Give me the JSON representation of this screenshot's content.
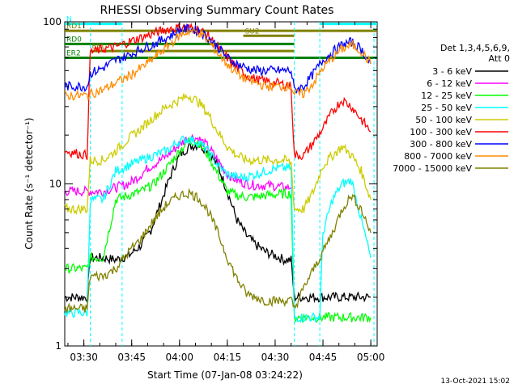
{
  "chart_data": {
    "type": "line",
    "title": "RHESSI Observing Summary Count Rates",
    "xlabel": "Start Time (07-Jan-08 03:24:22)",
    "ylabel": "Count Rate (s⁻¹ detector⁻¹)",
    "yscale": "log",
    "ylim": [
      1,
      100
    ],
    "xlim_min": [
      0,
      98
    ],
    "y_ticks": [
      {
        "v": 1,
        "label": "1"
      },
      {
        "v": 10,
        "label": "10"
      },
      {
        "v": 100,
        "label": "100"
      }
    ],
    "x_ticks": [
      {
        "t": 6,
        "label": "03:30"
      },
      {
        "t": 21,
        "label": "03:45"
      },
      {
        "t": 36,
        "label": "04:00"
      },
      {
        "t": 51,
        "label": "04:15"
      },
      {
        "t": 66,
        "label": "04:30"
      },
      {
        "t": 81,
        "label": "04:45"
      },
      {
        "t": 96,
        "label": "05:00"
      }
    ],
    "legend": {
      "header": [
        "Det 1,3,4,5,6,9,",
        "Att 0"
      ],
      "placement": "right"
    },
    "series": [
      {
        "name": "3 - 6 keV",
        "color": "#000000",
        "points": [
          [
            0,
            2.0
          ],
          [
            7,
            2.0
          ],
          [
            8,
            3.5
          ],
          [
            12,
            3.5
          ],
          [
            16,
            3.4
          ],
          [
            20,
            3.6
          ],
          [
            24,
            4.2
          ],
          [
            27,
            5.2
          ],
          [
            30,
            7.5
          ],
          [
            33,
            11
          ],
          [
            36,
            15
          ],
          [
            39,
            17
          ],
          [
            42,
            17.5
          ],
          [
            45,
            16
          ],
          [
            48,
            13
          ],
          [
            51,
            9
          ],
          [
            54,
            6
          ],
          [
            57,
            4.8
          ],
          [
            60,
            4.2
          ],
          [
            63,
            3.8
          ],
          [
            66,
            3.6
          ],
          [
            69,
            3.4
          ],
          [
            71,
            3.4
          ],
          [
            72,
            2.0
          ],
          [
            75,
            2.0
          ],
          [
            80,
            2.0
          ],
          [
            84,
            2.0
          ],
          [
            90,
            2.0
          ],
          [
            93,
            2.0
          ],
          [
            96,
            2.0
          ]
        ]
      },
      {
        "name": "6 - 12 keV",
        "color": "#ff00ff",
        "points": [
          [
            0,
            9
          ],
          [
            8,
            9
          ],
          [
            12,
            9
          ],
          [
            16,
            9.5
          ],
          [
            20,
            10
          ],
          [
            23,
            11
          ],
          [
            26,
            12.5
          ],
          [
            30,
            14
          ],
          [
            33,
            15.5
          ],
          [
            36,
            17.5
          ],
          [
            39,
            19.5
          ],
          [
            42,
            19
          ],
          [
            45,
            17
          ],
          [
            48,
            14
          ],
          [
            51,
            11.5
          ],
          [
            54,
            10.5
          ],
          [
            57,
            10
          ],
          [
            60,
            9.8
          ],
          [
            63,
            9.8
          ],
          [
            66,
            9.7
          ],
          [
            69,
            9.5
          ],
          [
            71,
            9.5
          ]
        ]
      },
      {
        "name": "12 - 25 keV",
        "color": "#00ff00",
        "points": [
          [
            0,
            3.0
          ],
          [
            7,
            3.0
          ],
          [
            8,
            3.5
          ],
          [
            12,
            3.5
          ],
          [
            16,
            8
          ],
          [
            20,
            8.5
          ],
          [
            24,
            9
          ],
          [
            28,
            10
          ],
          [
            32,
            12.5
          ],
          [
            36,
            16
          ],
          [
            39,
            18.5
          ],
          [
            42,
            18
          ],
          [
            45,
            15
          ],
          [
            48,
            11.5
          ],
          [
            51,
            9
          ],
          [
            54,
            8.5
          ],
          [
            57,
            8.3
          ],
          [
            60,
            8.3
          ],
          [
            63,
            8.5
          ],
          [
            66,
            8.6
          ],
          [
            69,
            8.7
          ],
          [
            71,
            8.7
          ],
          [
            72,
            1.5
          ],
          [
            80,
            1.5
          ],
          [
            84,
            1.5
          ],
          [
            90,
            1.5
          ],
          [
            96,
            1.5
          ]
        ]
      },
      {
        "name": "25 - 50 keV",
        "color": "#00ffff",
        "points": [
          [
            0,
            1.6
          ],
          [
            7,
            1.6
          ],
          [
            8,
            8
          ],
          [
            12,
            8
          ],
          [
            16,
            12
          ],
          [
            20,
            13
          ],
          [
            24,
            14
          ],
          [
            28,
            15
          ],
          [
            32,
            16
          ],
          [
            36,
            18.5
          ],
          [
            39,
            19
          ],
          [
            42,
            18
          ],
          [
            45,
            16
          ],
          [
            48,
            13
          ],
          [
            51,
            11.5
          ],
          [
            54,
            11
          ],
          [
            57,
            11
          ],
          [
            60,
            11.5
          ],
          [
            63,
            12
          ],
          [
            66,
            12.5
          ],
          [
            69,
            12.5
          ],
          [
            71,
            12.5
          ],
          [
            72,
            1.5
          ],
          [
            80,
            1.5
          ],
          [
            81,
            5
          ],
          [
            84,
            8
          ],
          [
            87,
            10
          ],
          [
            90,
            10.5
          ],
          [
            93,
            6
          ],
          [
            96,
            3.5
          ]
        ]
      },
      {
        "name": "50 - 100 keV",
        "color": "#cccc00",
        "points": [
          [
            0,
            7
          ],
          [
            7,
            7
          ],
          [
            8,
            14
          ],
          [
            12,
            14
          ],
          [
            16,
            16
          ],
          [
            20,
            19
          ],
          [
            24,
            22
          ],
          [
            28,
            26
          ],
          [
            32,
            30
          ],
          [
            36,
            33
          ],
          [
            39,
            35
          ],
          [
            42,
            32
          ],
          [
            45,
            27
          ],
          [
            48,
            21
          ],
          [
            51,
            17
          ],
          [
            54,
            15
          ],
          [
            57,
            14
          ],
          [
            60,
            14
          ],
          [
            63,
            14
          ],
          [
            66,
            14
          ],
          [
            69,
            14
          ],
          [
            71,
            13.5
          ],
          [
            72,
            7
          ],
          [
            75,
            7
          ],
          [
            78,
            9
          ],
          [
            81,
            13
          ],
          [
            84,
            15
          ],
          [
            87,
            17
          ],
          [
            90,
            15
          ],
          [
            93,
            12
          ],
          [
            96,
            8
          ]
        ]
      },
      {
        "name": "100 - 300 keV",
        "color": "#ff0000",
        "points": [
          [
            0,
            16
          ],
          [
            7,
            15
          ],
          [
            8,
            65
          ],
          [
            12,
            68
          ],
          [
            16,
            70
          ],
          [
            20,
            75
          ],
          [
            24,
            80
          ],
          [
            28,
            85
          ],
          [
            32,
            90
          ],
          [
            36,
            92
          ],
          [
            39,
            92
          ],
          [
            42,
            90
          ],
          [
            45,
            82
          ],
          [
            48,
            70
          ],
          [
            51,
            60
          ],
          [
            54,
            52
          ],
          [
            57,
            47
          ],
          [
            60,
            44
          ],
          [
            63,
            43
          ],
          [
            66,
            42
          ],
          [
            69,
            41
          ],
          [
            71,
            40
          ],
          [
            72,
            15
          ],
          [
            75,
            15
          ],
          [
            78,
            18
          ],
          [
            81,
            22
          ],
          [
            84,
            28
          ],
          [
            87,
            33
          ],
          [
            90,
            30
          ],
          [
            93,
            25
          ],
          [
            96,
            21
          ]
        ]
      },
      {
        "name": "300 - 800 keV",
        "color": "#0000ff",
        "points": [
          [
            0,
            40
          ],
          [
            7,
            40
          ],
          [
            8,
            48
          ],
          [
            12,
            52
          ],
          [
            16,
            58
          ],
          [
            20,
            62
          ],
          [
            24,
            68
          ],
          [
            28,
            73
          ],
          [
            32,
            80
          ],
          [
            36,
            88
          ],
          [
            39,
            91
          ],
          [
            42,
            88
          ],
          [
            45,
            80
          ],
          [
            48,
            70
          ],
          [
            51,
            60
          ],
          [
            54,
            55
          ],
          [
            57,
            52
          ],
          [
            60,
            50
          ],
          [
            63,
            50
          ],
          [
            66,
            50
          ],
          [
            69,
            50
          ],
          [
            71,
            50
          ],
          [
            72,
            38
          ],
          [
            75,
            40
          ],
          [
            78,
            48
          ],
          [
            81,
            58
          ],
          [
            84,
            65
          ],
          [
            87,
            72
          ],
          [
            90,
            75
          ],
          [
            93,
            68
          ],
          [
            96,
            55
          ]
        ]
      },
      {
        "name": "800 - 7000 keV",
        "color": "#ff8c00",
        "points": [
          [
            0,
            35
          ],
          [
            7,
            35
          ],
          [
            8,
            36
          ],
          [
            12,
            38
          ],
          [
            16,
            42
          ],
          [
            20,
            46
          ],
          [
            24,
            52
          ],
          [
            28,
            60
          ],
          [
            32,
            70
          ],
          [
            36,
            82
          ],
          [
            39,
            88
          ],
          [
            42,
            86
          ],
          [
            45,
            76
          ],
          [
            48,
            64
          ],
          [
            51,
            55
          ],
          [
            54,
            48
          ],
          [
            57,
            44
          ],
          [
            60,
            42
          ],
          [
            63,
            40
          ],
          [
            66,
            40
          ],
          [
            69,
            40
          ],
          [
            71,
            40
          ],
          [
            72,
            36
          ],
          [
            75,
            36
          ],
          [
            78,
            42
          ],
          [
            81,
            52
          ],
          [
            84,
            60
          ],
          [
            87,
            68
          ],
          [
            90,
            72
          ],
          [
            93,
            66
          ],
          [
            96,
            55
          ]
        ]
      },
      {
        "name": "7000 - 15000 keV",
        "color": "#808000",
        "points": [
          [
            0,
            1.7
          ],
          [
            7,
            1.7
          ],
          [
            8,
            2.7
          ],
          [
            12,
            2.7
          ],
          [
            16,
            3
          ],
          [
            20,
            3.8
          ],
          [
            24,
            4.6
          ],
          [
            28,
            6
          ],
          [
            32,
            7.5
          ],
          [
            36,
            8.5
          ],
          [
            39,
            8.8
          ],
          [
            42,
            8.2
          ],
          [
            45,
            6.8
          ],
          [
            48,
            5
          ],
          [
            51,
            3.5
          ],
          [
            54,
            2.6
          ],
          [
            57,
            2.1
          ],
          [
            60,
            2
          ],
          [
            63,
            1.9
          ],
          [
            66,
            1.9
          ],
          [
            69,
            1.9
          ],
          [
            71,
            1.9
          ],
          [
            72,
            1.7
          ],
          [
            76,
            2.5
          ],
          [
            80,
            3.5
          ],
          [
            84,
            5
          ],
          [
            87,
            7
          ],
          [
            90,
            8.5
          ],
          [
            93,
            7
          ],
          [
            96,
            5
          ]
        ]
      }
    ],
    "flags": [
      {
        "label": "N",
        "y": 97,
        "x_start": 0,
        "x_end": 18,
        "color": "#00ffff"
      },
      {
        "label": "",
        "y": 97,
        "x_start": 80,
        "x_end": 98,
        "color": "#00ffff"
      },
      {
        "label": "RD1",
        "y": 88,
        "x_start": 0,
        "x_end": 98,
        "color": "#808000"
      },
      {
        "label": "SU2",
        "y": 82,
        "x_start": 56,
        "x_end": 72,
        "color": "#808000"
      },
      {
        "label": "RD0",
        "y": 73,
        "x_start": 0,
        "x_end": 72,
        "color": "#008000"
      },
      {
        "label": "ERL",
        "y": 66,
        "x_start": 8,
        "x_end": 72,
        "color": "#808000"
      },
      {
        "label": "ER2",
        "y": 60,
        "x_start": 0,
        "x_end": 98,
        "color": "#008000"
      }
    ],
    "vlines": [
      {
        "t": 8,
        "color": "#00ffff"
      },
      {
        "t": 18,
        "color": "#00ffff"
      },
      {
        "t": 72,
        "color": "#00ffff"
      },
      {
        "t": 80,
        "color": "#00ffff"
      },
      {
        "t": 97,
        "color": "#00ffff"
      }
    ]
  },
  "footer": {
    "timestamp": "13-Oct-2021 15:02"
  }
}
